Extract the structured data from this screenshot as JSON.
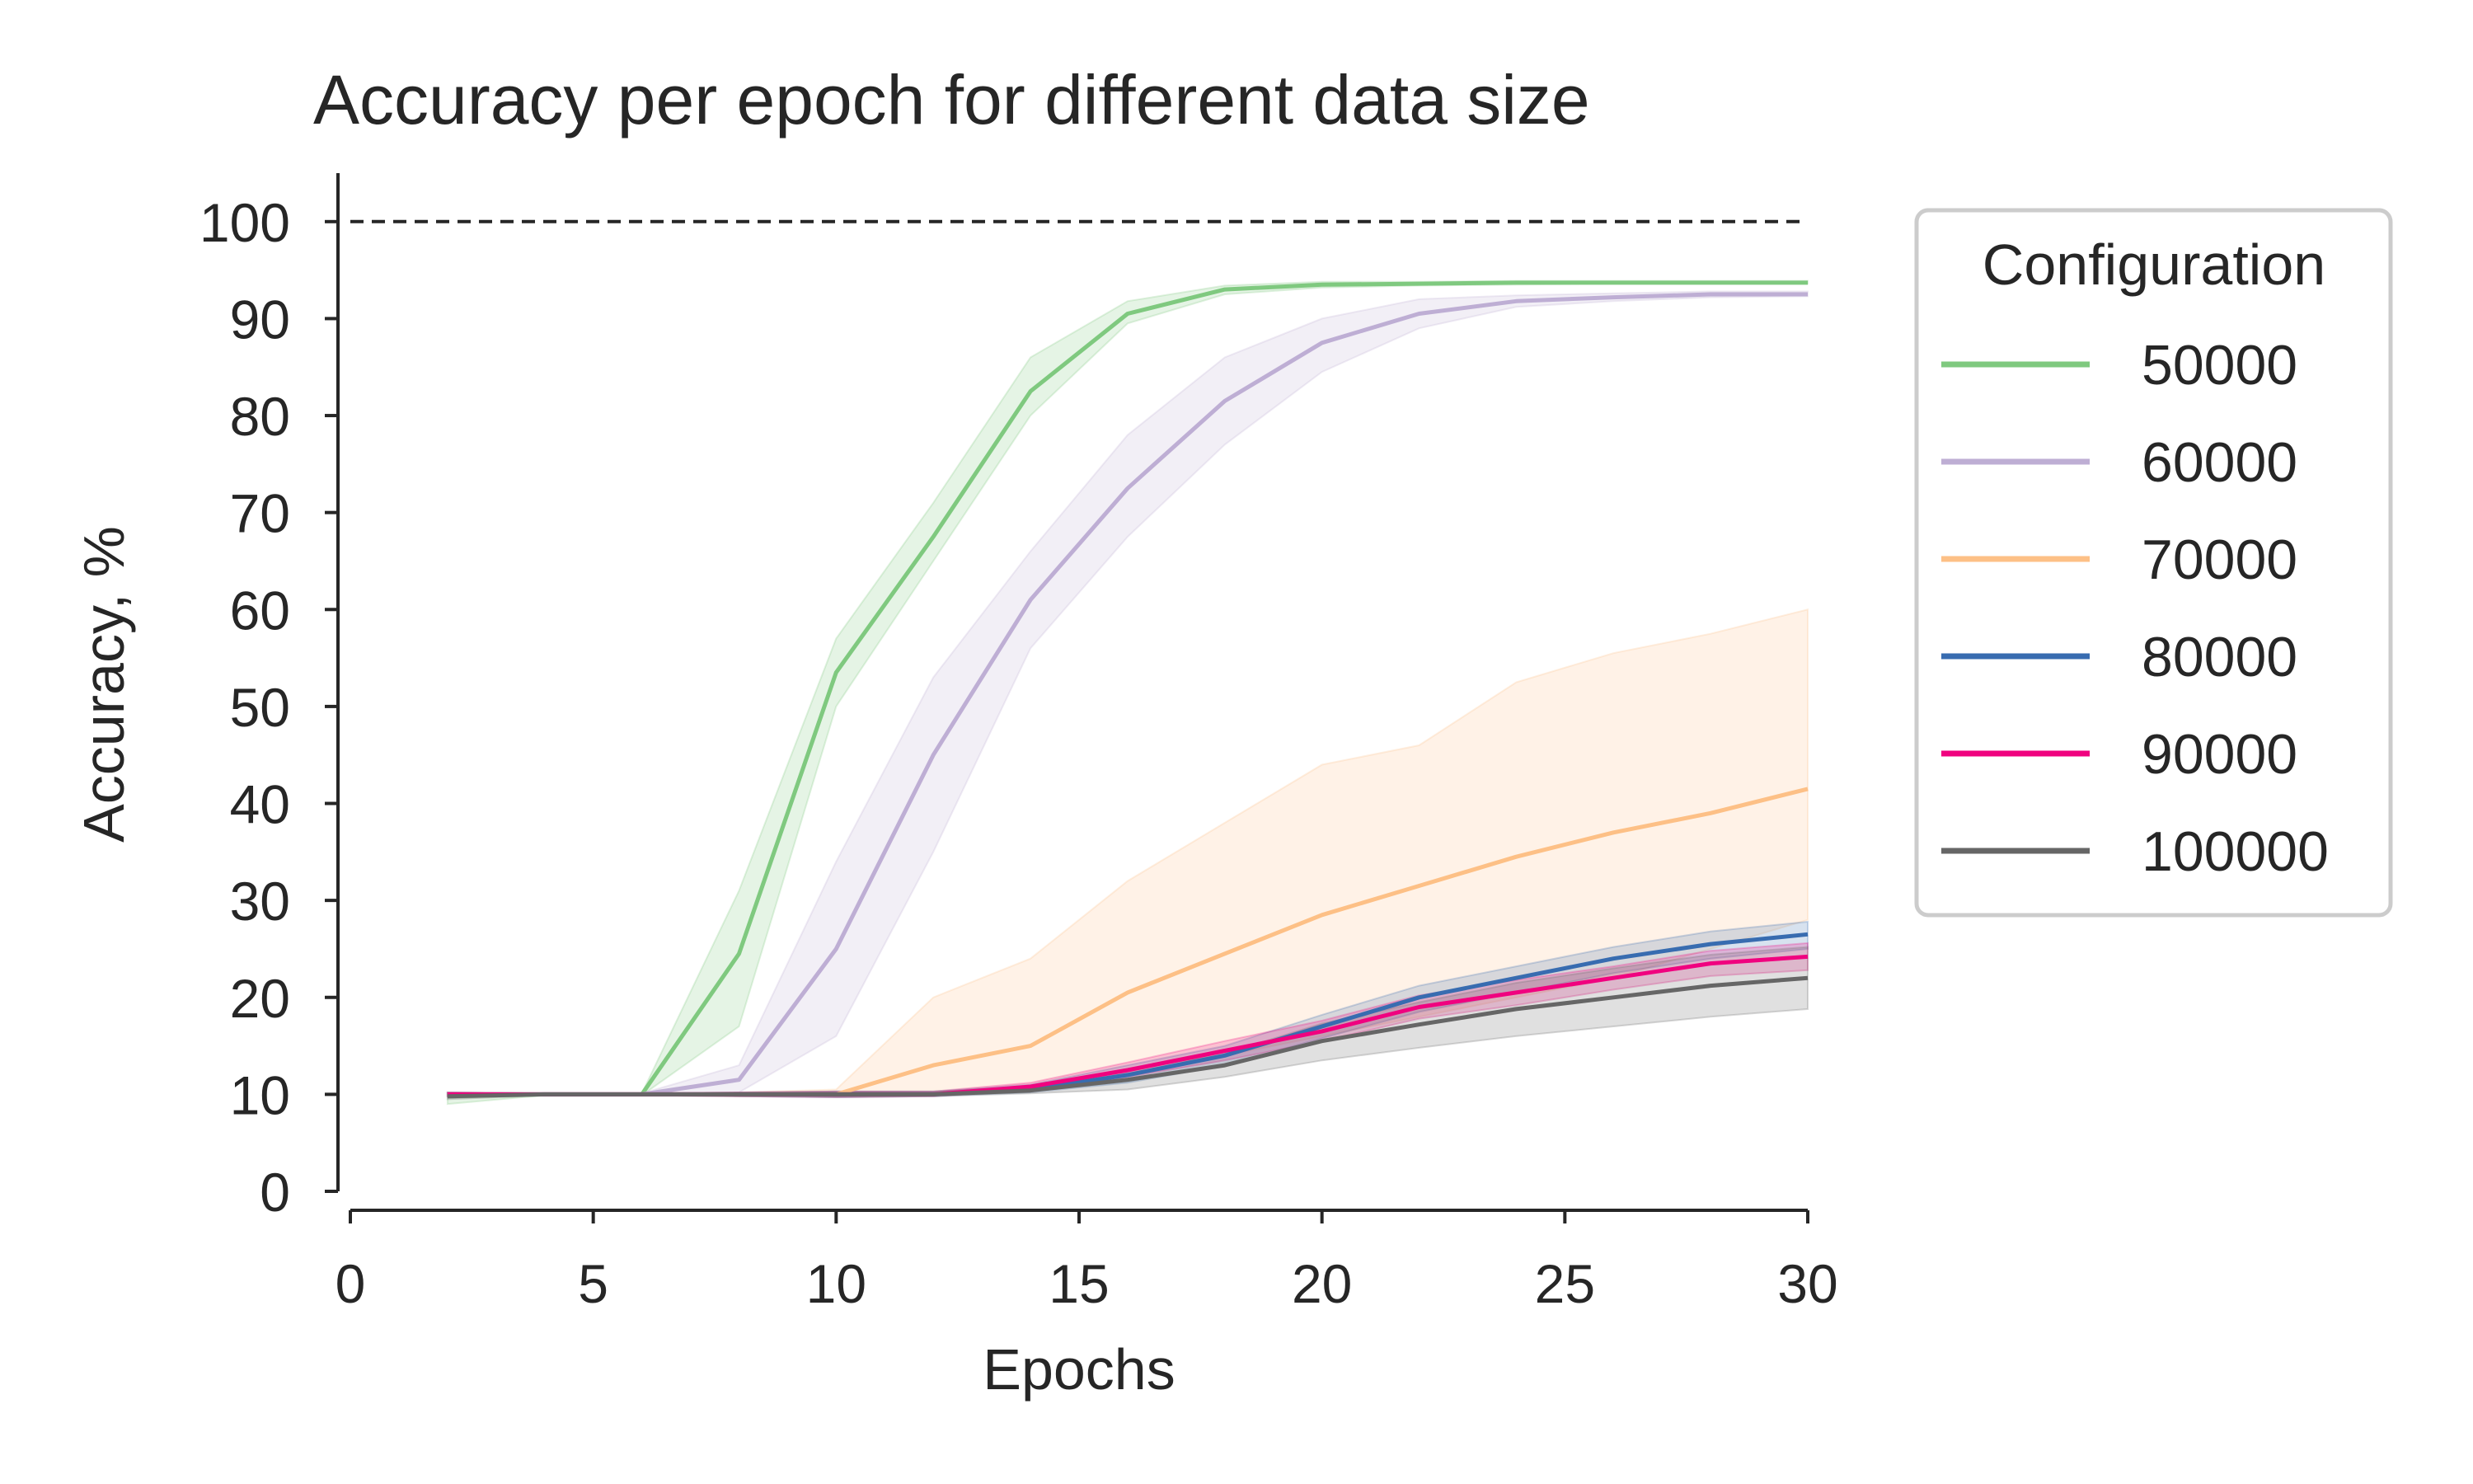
{
  "chart_data": {
    "type": "line",
    "title": "Accuracy per epoch for different data size",
    "xlabel": "Epochs",
    "ylabel": "Accuracy, %",
    "xlim": [
      0,
      30
    ],
    "ylim": [
      0,
      105
    ],
    "xticks": [
      0,
      5,
      10,
      15,
      20,
      25,
      30
    ],
    "yticks": [
      0,
      10,
      20,
      30,
      40,
      50,
      60,
      70,
      80,
      90,
      100
    ],
    "grid": false,
    "reference_line": {
      "y": 100,
      "style": "dashed",
      "color": "#262626"
    },
    "legend": {
      "title": "Configuration",
      "placement": "outside-right"
    },
    "x": [
      2,
      4,
      6,
      8,
      10,
      12,
      14,
      16,
      18,
      20,
      22,
      24,
      26,
      28,
      30
    ],
    "series": [
      {
        "name": "50000",
        "color": "#7fc97f",
        "values": [
          9.8,
          10,
          10,
          24.5,
          53.5,
          67.5,
          82.5,
          90.5,
          93,
          93.5,
          93.6,
          93.7,
          93.7,
          93.7,
          93.7
        ],
        "lower": [
          9.0,
          9.9,
          9.9,
          17,
          50,
          65,
          80,
          89.5,
          92.5,
          93.2,
          93.4,
          93.5,
          93.6,
          93.6,
          93.6
        ],
        "upper": [
          10.2,
          10.1,
          10.1,
          31,
          57,
          71,
          86,
          91.8,
          93.4,
          93.8,
          93.8,
          93.9,
          93.9,
          93.9,
          93.9
        ]
      },
      {
        "name": "60000",
        "color": "#beaed4",
        "values": [
          10,
          10,
          10,
          11.5,
          25,
          45,
          61,
          72.5,
          81.5,
          87.5,
          90.5,
          91.8,
          92.2,
          92.5,
          92.5
        ],
        "lower": [
          9.8,
          9.9,
          9.9,
          10.2,
          16,
          35,
          56,
          67.5,
          77,
          84.5,
          89,
          91.2,
          91.8,
          92.2,
          92.3
        ],
        "upper": [
          10.2,
          10.1,
          10.1,
          13,
          34,
          53,
          66,
          78,
          86,
          90,
          92,
          92.4,
          92.6,
          92.8,
          92.8
        ]
      },
      {
        "name": "70000",
        "color": "#fdc086",
        "values": [
          10,
          10,
          10,
          10,
          10,
          13,
          15,
          20.5,
          24.5,
          28.5,
          31.5,
          34.5,
          37,
          39,
          41.5
        ],
        "lower": [
          9.8,
          9.9,
          9.9,
          9.8,
          9.9,
          10,
          10.5,
          12,
          14,
          16,
          18,
          20,
          22,
          25,
          28
        ],
        "upper": [
          10.2,
          10.1,
          10.1,
          10.2,
          10.5,
          20,
          24,
          32,
          38,
          44,
          46,
          52.5,
          55.5,
          57.5,
          60
        ]
      },
      {
        "name": "80000",
        "color": "#386cb0",
        "values": [
          10,
          10,
          10,
          10,
          10,
          10,
          10.5,
          12,
          14,
          17,
          20,
          22,
          24,
          25.5,
          26.5
        ],
        "lower": [
          9.8,
          9.9,
          9.9,
          9.8,
          9.7,
          9.8,
          10.2,
          11.2,
          13,
          15.8,
          18.5,
          20.5,
          22.5,
          24,
          25
        ],
        "upper": [
          10.2,
          10.1,
          10.1,
          10.2,
          10.3,
          10.3,
          11,
          13,
          15,
          18.2,
          21.2,
          23.2,
          25.2,
          26.8,
          27.8
        ]
      },
      {
        "name": "90000",
        "color": "#f0027f",
        "values": [
          10,
          10,
          10,
          10,
          10,
          10,
          10.8,
          12.5,
          14.5,
          16.5,
          19,
          20.5,
          22,
          23.5,
          24.2
        ],
        "lower": [
          9.8,
          9.9,
          9.9,
          9.8,
          9.7,
          9.8,
          10.4,
          11.8,
          13.5,
          15.5,
          17.8,
          19.2,
          20.8,
          22.2,
          22.8
        ],
        "upper": [
          10.2,
          10.1,
          10.1,
          10.2,
          10.3,
          10.3,
          11.2,
          13.3,
          15.5,
          17.6,
          20.2,
          21.8,
          23.2,
          24.8,
          25.6
        ]
      },
      {
        "name": "100000",
        "color": "#666666",
        "values": [
          9.8,
          10,
          10,
          10,
          10,
          10,
          10.4,
          11.5,
          13,
          15.5,
          17.2,
          18.8,
          20,
          21.2,
          22
        ],
        "lower": [
          9.5,
          9.9,
          9.9,
          9.8,
          9.7,
          9.8,
          10.1,
          10.5,
          11.8,
          13.5,
          14.8,
          16,
          17,
          18,
          18.8
        ],
        "upper": [
          10.1,
          10.1,
          10.1,
          10.2,
          10.3,
          10.3,
          10.8,
          12.5,
          14.2,
          17.3,
          19.5,
          21.5,
          23,
          24.4,
          25.2
        ]
      }
    ]
  }
}
